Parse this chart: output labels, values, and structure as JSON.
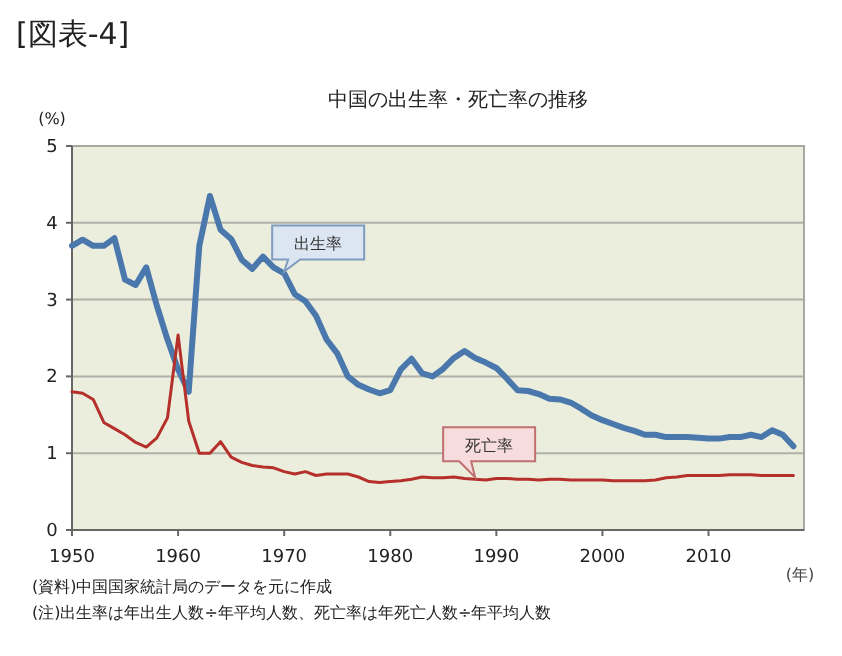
{
  "chart_data": {
    "type": "line",
    "title": "中国の出生率・死亡率の推移",
    "ylabel": "(%)",
    "xlabel": "(年)",
    "annotations": [
      "[図表-4]",
      "(資料)中国国家統計局のデータを元に作成",
      "(注)出生率は年出生人数÷年平均人数、死亡率は年死亡人数÷年平均人数"
    ],
    "x": [
      1950,
      1951,
      1952,
      1953,
      1954,
      1955,
      1956,
      1957,
      1958,
      1959,
      1960,
      1961,
      1962,
      1963,
      1964,
      1965,
      1966,
      1967,
      1968,
      1969,
      1970,
      1971,
      1972,
      1973,
      1974,
      1975,
      1976,
      1977,
      1978,
      1979,
      1980,
      1981,
      1982,
      1983,
      1984,
      1985,
      1986,
      1987,
      1988,
      1989,
      1990,
      1991,
      1992,
      1993,
      1994,
      1995,
      1996,
      1997,
      1998,
      1999,
      2000,
      2001,
      2002,
      2003,
      2004,
      2005,
      2006,
      2007,
      2008,
      2009,
      2010,
      2011,
      2012,
      2013,
      2014,
      2015,
      2016,
      2017,
      2018
    ],
    "series": [
      {
        "name": "出生率",
        "color": "#4a78ad",
        "values": [
          3.7,
          3.78,
          3.7,
          3.7,
          3.8,
          3.26,
          3.19,
          3.42,
          2.92,
          2.48,
          2.09,
          1.8,
          3.7,
          4.35,
          3.91,
          3.79,
          3.52,
          3.4,
          3.56,
          3.42,
          3.34,
          3.07,
          2.98,
          2.79,
          2.48,
          2.3,
          2.0,
          1.89,
          1.83,
          1.78,
          1.82,
          2.09,
          2.23,
          2.04,
          2.0,
          2.1,
          2.24,
          2.33,
          2.24,
          2.18,
          2.11,
          1.97,
          1.82,
          1.81,
          1.77,
          1.71,
          1.7,
          1.66,
          1.58,
          1.49,
          1.43,
          1.38,
          1.33,
          1.29,
          1.24,
          1.24,
          1.21,
          1.21,
          1.21,
          1.2,
          1.19,
          1.19,
          1.21,
          1.21,
          1.24,
          1.21,
          1.3,
          1.24,
          1.09
        ]
      },
      {
        "name": "死亡率",
        "color": "#b5302a",
        "values": [
          1.8,
          1.78,
          1.7,
          1.4,
          1.32,
          1.24,
          1.14,
          1.08,
          1.2,
          1.46,
          2.54,
          1.42,
          1.0,
          1.0,
          1.15,
          0.95,
          0.88,
          0.84,
          0.82,
          0.81,
          0.76,
          0.73,
          0.76,
          0.71,
          0.73,
          0.73,
          0.73,
          0.69,
          0.63,
          0.62,
          0.63,
          0.64,
          0.66,
          0.69,
          0.68,
          0.68,
          0.69,
          0.67,
          0.66,
          0.65,
          0.67,
          0.67,
          0.66,
          0.66,
          0.65,
          0.66,
          0.66,
          0.65,
          0.65,
          0.65,
          0.65,
          0.64,
          0.64,
          0.64,
          0.64,
          0.65,
          0.68,
          0.69,
          0.71,
          0.71,
          0.71,
          0.71,
          0.72,
          0.72,
          0.72,
          0.71,
          0.71,
          0.71,
          0.71
        ]
      }
    ],
    "xlim": [
      1950,
      2019
    ],
    "xticks": [
      1950,
      1960,
      1970,
      1980,
      1990,
      2000,
      2010
    ],
    "ylim": [
      0,
      5
    ],
    "yticks": [
      0,
      1,
      2,
      3,
      4,
      5
    ],
    "grid": "y",
    "marker": "none",
    "line_style": "solid"
  }
}
